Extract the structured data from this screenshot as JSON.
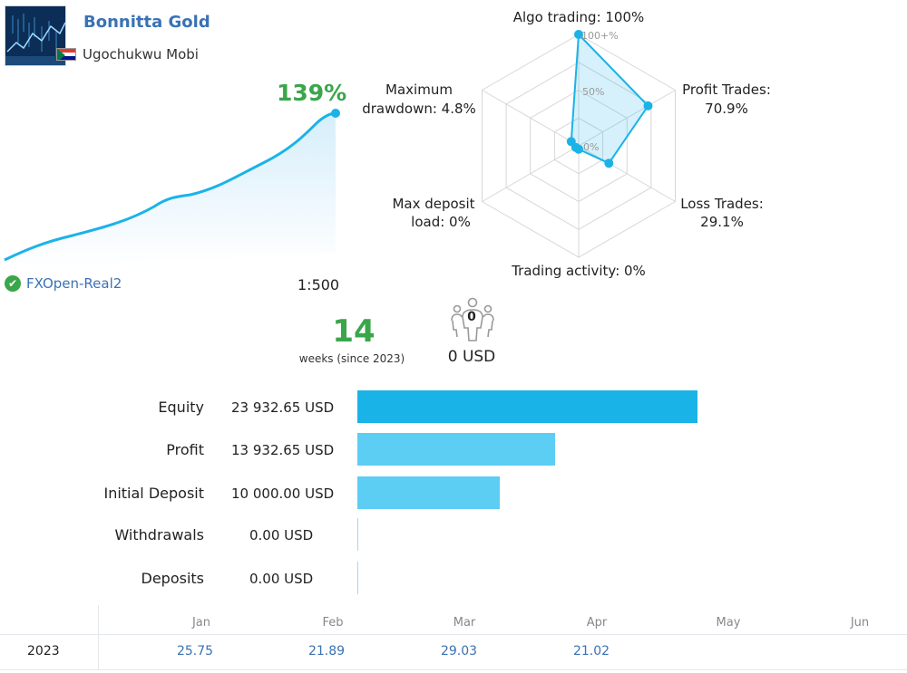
{
  "signal": {
    "name": "Bonnitta Gold",
    "author": "Ugochukwu Mobi",
    "growth": "139%",
    "broker": "FXOpen-Real2",
    "leverage": "1:500"
  },
  "radar": {
    "labels": {
      "algo": "Algo trading: 100%",
      "profit_title": "Profit Trades:",
      "profit_value": "70.9%",
      "loss_title": "Loss Trades:",
      "loss_value": "29.1%",
      "activity": "Trading activity: 0%",
      "deposit_title": "Max deposit",
      "deposit_value": "load: 0%",
      "drawdown_title": "Maximum",
      "drawdown_value": "drawdown: 4.8%"
    },
    "scale": {
      "top": "100+%",
      "mid": "50%",
      "zero": "0%"
    },
    "values": {
      "algo": 100,
      "profit": 70.9,
      "loss": 29.1,
      "activity": 0,
      "deposit": 0,
      "drawdown": 4.8
    }
  },
  "weeks": {
    "value": "14",
    "label": "weeks (since 2023)"
  },
  "subscribers": {
    "count": "0",
    "funds": "0 USD"
  },
  "account": [
    {
      "label": "Equity",
      "value": "23 932.65 USD",
      "amount": 23932.65
    },
    {
      "label": "Profit",
      "value": "13 932.65 USD",
      "amount": 13932.65
    },
    {
      "label": "Initial Deposit",
      "value": "10 000.00 USD",
      "amount": 10000.0
    },
    {
      "label": "Withdrawals",
      "value": "0.00 USD",
      "amount": 0
    },
    {
      "label": "Deposits",
      "value": "0.00 USD",
      "amount": 0
    }
  ],
  "months": {
    "names": [
      "Jan",
      "Feb",
      "Mar",
      "Apr",
      "May",
      "Jun"
    ],
    "year": "2023",
    "values": [
      "25.75",
      "21.89",
      "29.03",
      "21.02"
    ]
  },
  "colors": {
    "accent_blue": "#1ab3e8",
    "bar_light": "#5ccdf3",
    "green": "#3aa64b",
    "link_blue": "#3a72b4"
  }
}
